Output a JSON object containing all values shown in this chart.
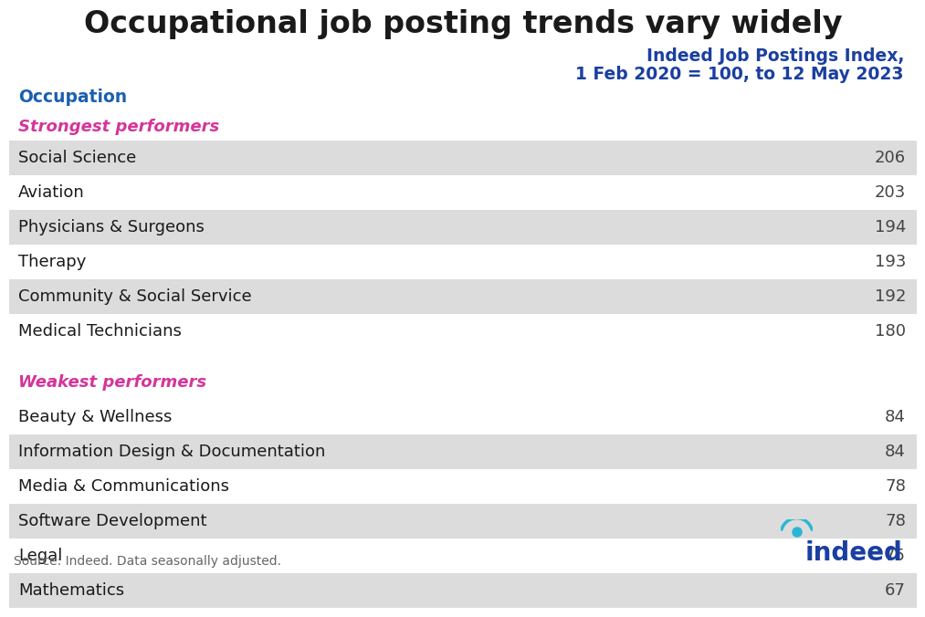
{
  "title": "Occupational job posting trends vary widely",
  "col_header_left": "Occupation",
  "col_header_right_line1": "Indeed Job Postings Index,",
  "col_header_right_line2": "1 Feb 2020 = 100, to 12 May 2023",
  "section1_label": "Strongest performers",
  "section2_label": "Weakest performers",
  "strongest": [
    {
      "name": "Social Science",
      "value": 206,
      "shaded": true
    },
    {
      "name": "Aviation",
      "value": 203,
      "shaded": false
    },
    {
      "name": "Physicians & Surgeons",
      "value": 194,
      "shaded": true
    },
    {
      "name": "Therapy",
      "value": 193,
      "shaded": false
    },
    {
      "name": "Community & Social Service",
      "value": 192,
      "shaded": true
    },
    {
      "name": "Medical Technicians",
      "value": 180,
      "shaded": false
    }
  ],
  "weakest": [
    {
      "name": "Beauty & Wellness",
      "value": 84,
      "shaded": false
    },
    {
      "name": "Information Design & Documentation",
      "value": 84,
      "shaded": true
    },
    {
      "name": "Media & Communications",
      "value": 78,
      "shaded": false
    },
    {
      "name": "Software Development",
      "value": 78,
      "shaded": true
    },
    {
      "name": "Legal",
      "value": 75,
      "shaded": false
    },
    {
      "name": "Mathematics",
      "value": 67,
      "shaded": true
    }
  ],
  "source_text": "Source: Indeed. Data seasonally adjusted.",
  "bg_color": "#ffffff",
  "shaded_color": "#dcdcdc",
  "title_color": "#1a1a1a",
  "header_left_color": "#1a5faf",
  "header_right_color": "#1a3fa0",
  "section_label_color": "#d4359a",
  "row_text_color": "#1a1a1a",
  "value_text_color": "#444444",
  "title_fontsize": 24,
  "header_fontsize": 13.5,
  "section_label_fontsize": 13,
  "row_fontsize": 13,
  "source_fontsize": 10,
  "indeed_color": "#1a3fa0",
  "indeed_arc_color": "#29b6d6"
}
